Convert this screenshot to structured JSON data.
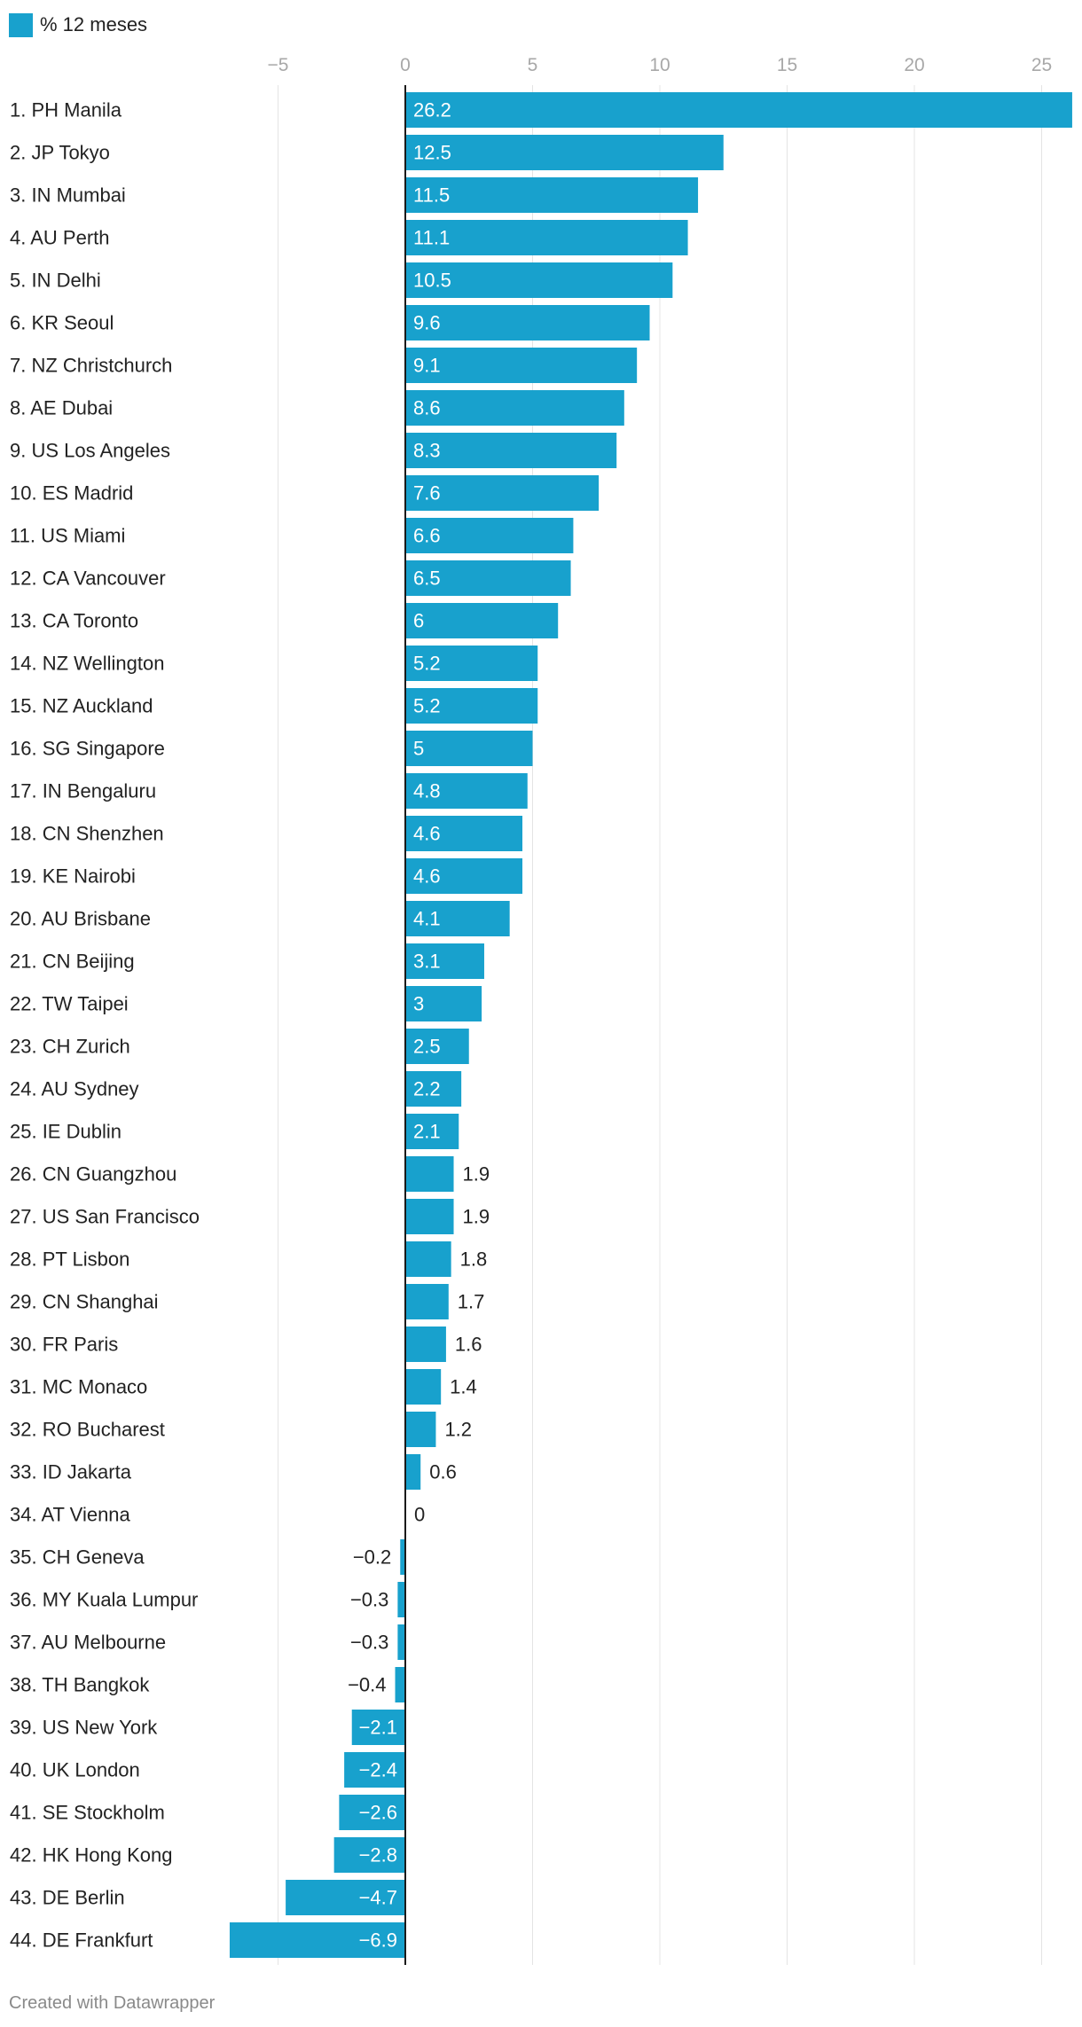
{
  "legend": {
    "label": "% 12 meses",
    "color": "#18a1cd"
  },
  "footer": {
    "credit": "Created with Datawrapper"
  },
  "chart_data": {
    "type": "bar",
    "orientation": "horizontal",
    "title": "",
    "xlabel": "",
    "ylabel": "",
    "xlim": [
      -7,
      26.2
    ],
    "x_ticks": [
      -5,
      0,
      5,
      10,
      15,
      20,
      25
    ],
    "x_tick_labels": [
      "−5",
      "0",
      "5",
      "10",
      "15",
      "20",
      "25"
    ],
    "grid": true,
    "legend_position": "top-left",
    "bar_color": "#18a1cd",
    "series": [
      {
        "name": "% 12 meses"
      }
    ],
    "categories": [
      "1. PH Manila",
      "2. JP Tokyo",
      "3. IN Mumbai",
      "4. AU Perth",
      "5. IN Delhi",
      "6. KR Seoul",
      "7. NZ Christchurch",
      "8. AE Dubai",
      "9. US Los Angeles",
      "10. ES Madrid",
      "11. US Miami",
      "12. CA Vancouver",
      "13. CA Toronto",
      "14. NZ Wellington",
      "15. NZ Auckland",
      "16. SG Singapore",
      "17. IN Bengaluru",
      "18. CN Shenzhen",
      "19. KE Nairobi",
      "20. AU Brisbane",
      "21. CN Beijing",
      "22. TW Taipei",
      "23. CH Zurich",
      "24. AU Sydney",
      "25. IE Dublin",
      "26. CN Guangzhou",
      "27. US San Francisco",
      "28. PT Lisbon",
      "29. CN Shanghai",
      "30. FR Paris",
      "31. MC Monaco",
      "32. RO Bucharest",
      "33. ID Jakarta",
      "34. AT Vienna",
      "35. CH Geneva",
      "36. MY Kuala Lumpur",
      "37. AU Melbourne",
      "38. TH Bangkok",
      "39. US New York",
      "40. UK London",
      "41. SE Stockholm",
      "42. HK Hong Kong",
      "43. DE Berlin",
      "44. DE Frankfurt"
    ],
    "values": [
      26.2,
      12.5,
      11.5,
      11.1,
      10.5,
      9.6,
      9.1,
      8.6,
      8.3,
      7.6,
      6.6,
      6.5,
      6,
      5.2,
      5.2,
      5,
      4.8,
      4.6,
      4.6,
      4.1,
      3.1,
      3,
      2.5,
      2.2,
      2.1,
      1.9,
      1.9,
      1.8,
      1.7,
      1.6,
      1.4,
      1.2,
      0.6,
      0,
      -0.2,
      -0.3,
      -0.3,
      -0.4,
      -2.1,
      -2.4,
      -2.6,
      -2.8,
      -4.7,
      -6.9
    ],
    "value_labels": [
      "26.2",
      "12.5",
      "11.5",
      "11.1",
      "10.5",
      "9.6",
      "9.1",
      "8.6",
      "8.3",
      "7.6",
      "6.6",
      "6.5",
      "6",
      "5.2",
      "5.2",
      "5",
      "4.8",
      "4.6",
      "4.6",
      "4.1",
      "3.1",
      "3",
      "2.5",
      "2.2",
      "2.1",
      "1.9",
      "1.9",
      "1.8",
      "1.7",
      "1.6",
      "1.4",
      "1.2",
      "0.6",
      "0",
      "−0.2",
      "−0.3",
      "−0.3",
      "−0.4",
      "−2.1",
      "−2.4",
      "−2.6",
      "−2.8",
      "−4.7",
      "−6.9"
    ]
  }
}
